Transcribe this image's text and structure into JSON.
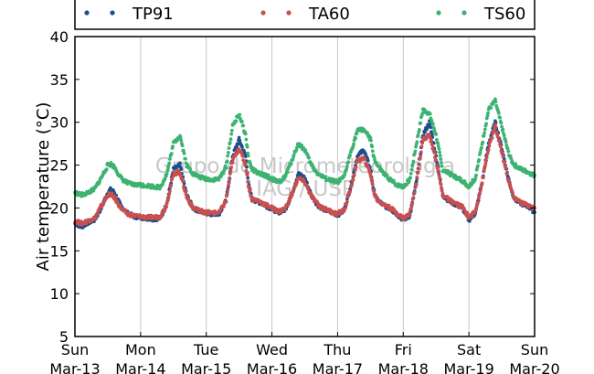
{
  "chart_data": {
    "type": "scatter",
    "ylabel": "Air temperature (°C)",
    "xlabel": "",
    "ylim": [
      5,
      40
    ],
    "yticks": [
      5,
      10,
      15,
      20,
      25,
      30,
      35,
      40
    ],
    "xlim_days": [
      0,
      7
    ],
    "x_unit": "days since Sun Mar-13 00:00",
    "xticks": [
      {
        "day": "Sun",
        "date": "Mar-13"
      },
      {
        "day": "Mon",
        "date": "Mar-14"
      },
      {
        "day": "Tue",
        "date": "Mar-15"
      },
      {
        "day": "Wed",
        "date": "Mar-16"
      },
      {
        "day": "Thu",
        "date": "Mar-17"
      },
      {
        "day": "Fri",
        "date": "Mar-18"
      },
      {
        "day": "Sat",
        "date": "Mar-19"
      },
      {
        "day": "Sun",
        "date": "Mar-20"
      }
    ],
    "grid": "vertical",
    "legend_position": "top",
    "watermark": [
      "Grupo de Micrometeorologia",
      "IAG / USP"
    ],
    "series": [
      {
        "name": "TP91",
        "color": "#1f4e8c",
        "x": [
          0,
          0.1,
          0.2,
          0.3,
          0.4,
          0.5,
          0.55,
          0.6,
          0.7,
          0.8,
          0.9,
          1.0,
          1.1,
          1.2,
          1.3,
          1.4,
          1.5,
          1.6,
          1.7,
          1.8,
          1.9,
          2.0,
          2.1,
          2.2,
          2.3,
          2.4,
          2.5,
          2.6,
          2.65,
          2.7,
          2.8,
          2.9,
          3.0,
          3.1,
          3.2,
          3.3,
          3.4,
          3.5,
          3.6,
          3.7,
          3.8,
          3.9,
          4.0,
          4.1,
          4.2,
          4.3,
          4.4,
          4.5,
          4.55,
          4.6,
          4.7,
          4.8,
          4.9,
          5.0,
          5.1,
          5.2,
          5.3,
          5.4,
          5.5,
          5.6,
          5.7,
          5.8,
          5.9,
          6.0,
          6.1,
          6.2,
          6.3,
          6.4,
          6.5,
          6.6,
          6.65,
          6.7,
          6.8,
          6.9,
          7.0
        ],
        "y": [
          18.2,
          17.8,
          18.3,
          18.6,
          20.0,
          21.8,
          22.2,
          21.8,
          20.2,
          19.4,
          19.0,
          18.9,
          18.8,
          18.7,
          18.8,
          20.5,
          24.5,
          25.0,
          21.5,
          20.0,
          19.6,
          19.4,
          19.3,
          19.4,
          20.8,
          26.0,
          28.0,
          26.0,
          22.5,
          21.0,
          20.7,
          20.3,
          19.9,
          19.5,
          19.8,
          21.5,
          24.0,
          23.5,
          21.5,
          20.3,
          19.8,
          19.5,
          19.2,
          19.7,
          22.5,
          26.0,
          26.8,
          24.5,
          22.0,
          21.0,
          20.3,
          19.9,
          19.3,
          18.6,
          19.1,
          23.0,
          28.5,
          30.0,
          26.0,
          21.5,
          20.8,
          20.4,
          20.0,
          18.6,
          19.4,
          23.0,
          27.5,
          30.0,
          27.0,
          23.5,
          22.0,
          21.0,
          20.5,
          20.2,
          19.5
        ]
      },
      {
        "name": "TA60",
        "color": "#c94f4f",
        "x": [
          0,
          0.1,
          0.2,
          0.3,
          0.4,
          0.5,
          0.55,
          0.6,
          0.7,
          0.8,
          0.9,
          1.0,
          1.1,
          1.2,
          1.3,
          1.4,
          1.5,
          1.6,
          1.7,
          1.8,
          1.9,
          2.0,
          2.1,
          2.2,
          2.3,
          2.4,
          2.5,
          2.6,
          2.65,
          2.7,
          2.8,
          2.9,
          3.0,
          3.1,
          3.2,
          3.3,
          3.4,
          3.5,
          3.6,
          3.7,
          3.8,
          3.9,
          4.0,
          4.1,
          4.2,
          4.3,
          4.4,
          4.5,
          4.55,
          4.6,
          4.7,
          4.8,
          4.9,
          5.0,
          5.1,
          5.2,
          5.3,
          5.4,
          5.5,
          5.6,
          5.7,
          5.8,
          5.9,
          6.0,
          6.1,
          6.2,
          6.3,
          6.4,
          6.5,
          6.6,
          6.65,
          6.7,
          6.8,
          6.9,
          7.0
        ],
        "y": [
          18.5,
          18.2,
          18.5,
          18.8,
          20.2,
          21.5,
          21.6,
          21.2,
          20.0,
          19.3,
          19.1,
          19.0,
          18.9,
          18.9,
          19.0,
          20.5,
          24.0,
          24.2,
          21.3,
          20.0,
          19.7,
          19.5,
          19.4,
          19.5,
          20.8,
          25.5,
          27.0,
          25.0,
          22.3,
          21.0,
          20.8,
          20.4,
          20.0,
          19.6,
          19.9,
          21.5,
          23.5,
          23.0,
          21.4,
          20.4,
          19.9,
          19.6,
          19.3,
          19.8,
          22.3,
          25.5,
          25.8,
          24.0,
          21.9,
          21.0,
          20.4,
          20.0,
          19.4,
          18.8,
          19.3,
          23.0,
          28.0,
          28.5,
          25.5,
          21.6,
          20.9,
          20.5,
          20.1,
          18.9,
          19.6,
          23.0,
          27.0,
          29.5,
          26.5,
          23.3,
          22.0,
          21.1,
          20.6,
          20.3,
          20.0
        ]
      },
      {
        "name": "TS60",
        "color": "#3cb371",
        "x": [
          0,
          0.1,
          0.2,
          0.3,
          0.4,
          0.5,
          0.55,
          0.6,
          0.7,
          0.8,
          0.9,
          1.0,
          1.1,
          1.2,
          1.3,
          1.4,
          1.5,
          1.6,
          1.7,
          1.8,
          1.9,
          2.0,
          2.1,
          2.2,
          2.3,
          2.4,
          2.5,
          2.6,
          2.65,
          2.7,
          2.8,
          2.9,
          3.0,
          3.1,
          3.2,
          3.3,
          3.4,
          3.5,
          3.6,
          3.7,
          3.8,
          3.9,
          4.0,
          4.1,
          4.2,
          4.3,
          4.4,
          4.5,
          4.55,
          4.6,
          4.7,
          4.8,
          4.9,
          5.0,
          5.1,
          5.2,
          5.3,
          5.4,
          5.5,
          5.6,
          5.7,
          5.8,
          5.9,
          6.0,
          6.1,
          6.2,
          6.3,
          6.4,
          6.5,
          6.6,
          6.65,
          6.7,
          6.8,
          6.9,
          7.0
        ],
        "y": [
          21.8,
          21.5,
          21.8,
          22.2,
          23.5,
          25.0,
          25.1,
          24.8,
          23.5,
          22.9,
          22.7,
          22.7,
          22.6,
          22.5,
          22.4,
          24.0,
          27.5,
          28.5,
          25.0,
          24.0,
          23.6,
          23.4,
          23.3,
          23.4,
          24.8,
          29.5,
          31.0,
          28.5,
          25.5,
          24.5,
          24.0,
          23.8,
          23.4,
          23.0,
          23.6,
          25.5,
          27.5,
          26.8,
          25.0,
          24.0,
          23.5,
          23.2,
          23.0,
          23.6,
          26.5,
          29.0,
          29.2,
          28.0,
          26.0,
          25.0,
          24.0,
          23.3,
          22.7,
          22.5,
          23.3,
          27.5,
          31.5,
          31.0,
          28.5,
          24.5,
          24.0,
          23.6,
          23.2,
          22.5,
          23.5,
          27.5,
          31.5,
          32.5,
          29.5,
          26.5,
          25.5,
          25.0,
          24.5,
          24.2,
          23.8
        ]
      }
    ]
  }
}
